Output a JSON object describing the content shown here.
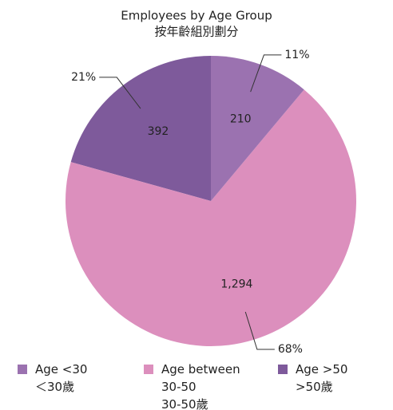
{
  "chart_data": {
    "type": "pie",
    "title": "Employees by Age Group",
    "subtitle": "按年齡組別劃分",
    "categories": [
      "Age <30",
      "Age between 30-50",
      "Age >50"
    ],
    "categories_zh": [
      "＜30歲",
      "30-50歲",
      ">50歲"
    ],
    "values": [
      210,
      1294,
      392
    ],
    "value_labels": [
      "210",
      "1,294",
      "392"
    ],
    "percentages": [
      11,
      68,
      21
    ],
    "percentage_labels": [
      "11%",
      "68%",
      "21%"
    ],
    "colors": [
      "#9b72b0",
      "#dc8fbd",
      "#7e5a9b"
    ],
    "legend": "bottom"
  }
}
